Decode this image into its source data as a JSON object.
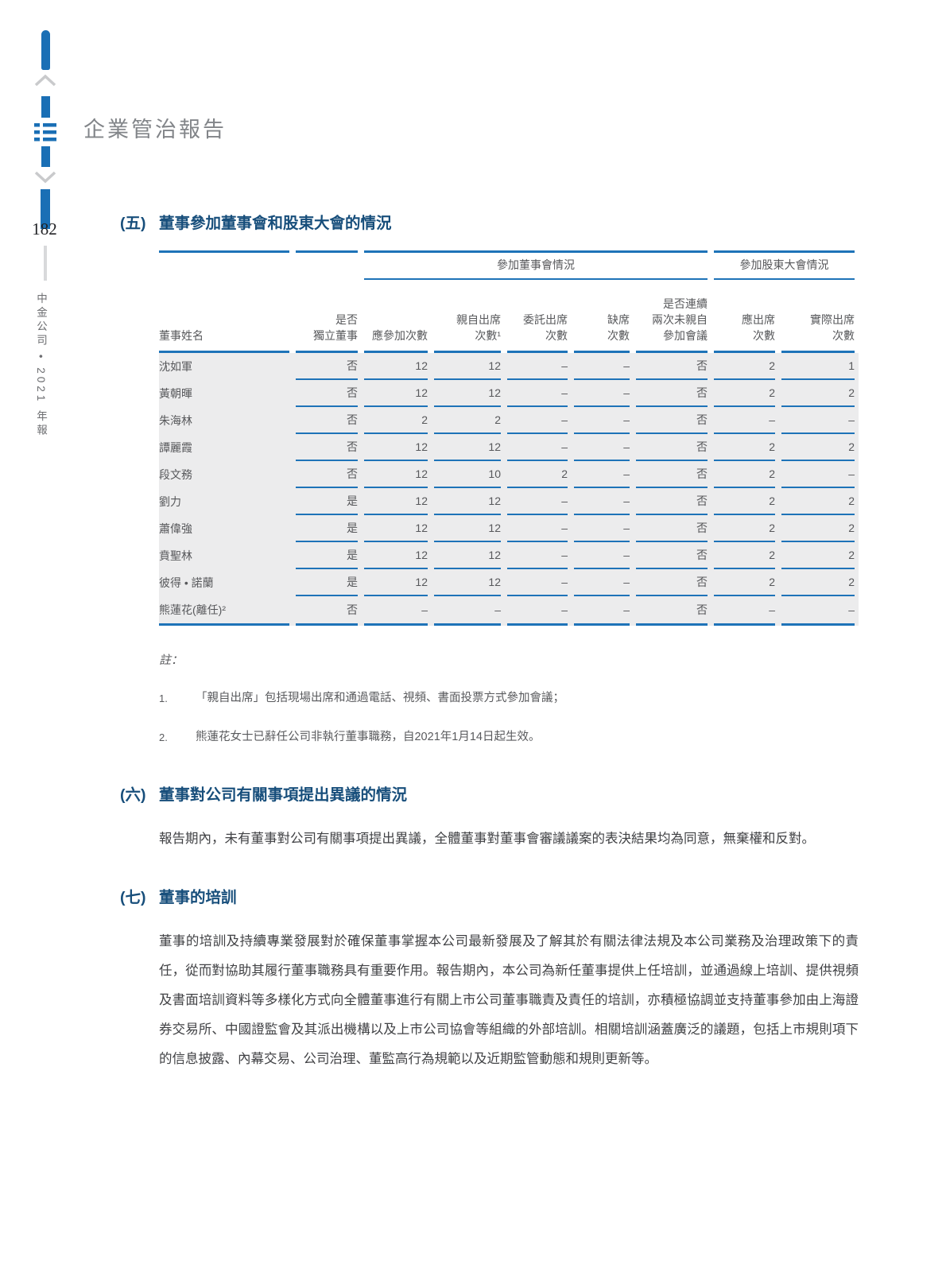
{
  "page": {
    "number": "182",
    "edition": "中金公司 • 2021 年報",
    "header_title": "企業管治報告"
  },
  "colors": {
    "accent_blue": "#1E73B8",
    "heading_navy": "#174E7B",
    "table_background": "#ECECED"
  },
  "section5": {
    "num": "(五)",
    "title": "董事參加董事會和股東大會的情況"
  },
  "table": {
    "group_headers": [
      "參加董事會情況",
      "參加股東大會情況"
    ],
    "columns": [
      "董事姓名",
      "是否\n獨立董事",
      "應參加次數",
      "親自出席\n次數¹",
      "委託出席\n次數",
      "缺席\n次數",
      "是否連續\n兩次未親自\n參加會議",
      "應出席\n次數",
      "實際出席\n次數"
    ],
    "rows": [
      [
        "沈如軍",
        "否",
        "12",
        "12",
        "–",
        "–",
        "否",
        "2",
        "1"
      ],
      [
        "黃朝暉",
        "否",
        "12",
        "12",
        "–",
        "–",
        "否",
        "2",
        "2"
      ],
      [
        "朱海林",
        "否",
        "2",
        "2",
        "–",
        "–",
        "否",
        "–",
        "–"
      ],
      [
        "譚麗霞",
        "否",
        "12",
        "12",
        "–",
        "–",
        "否",
        "2",
        "2"
      ],
      [
        "段文務",
        "否",
        "12",
        "10",
        "2",
        "–",
        "否",
        "2",
        "–"
      ],
      [
        "劉力",
        "是",
        "12",
        "12",
        "–",
        "–",
        "否",
        "2",
        "2"
      ],
      [
        "蕭偉強",
        "是",
        "12",
        "12",
        "–",
        "–",
        "否",
        "2",
        "2"
      ],
      [
        "賁聖林",
        "是",
        "12",
        "12",
        "–",
        "–",
        "否",
        "2",
        "2"
      ],
      [
        "彼得 • 諾蘭",
        "是",
        "12",
        "12",
        "–",
        "–",
        "否",
        "2",
        "2"
      ],
      [
        "熊蓮花(離任)²",
        "否",
        "–",
        "–",
        "–",
        "–",
        "否",
        "–",
        "–"
      ]
    ]
  },
  "notes": {
    "label": "註：",
    "items": [
      {
        "num": "1.",
        "text": "「親自出席」包括現場出席和通過電話、視頻、書面投票方式參加會議；"
      },
      {
        "num": "2.",
        "text": "熊蓮花女士已辭任公司非執行董事職務，自2021年1月14日起生效。"
      }
    ]
  },
  "section6": {
    "num": "(六)",
    "title": "董事對公司有關事項提出異議的情況",
    "body": "報告期內，未有董事對公司有關事項提出異議，全體董事對董事會審議議案的表決結果均為同意，無棄權和反對。"
  },
  "section7": {
    "num": "(七)",
    "title": "董事的培訓",
    "body": "董事的培訓及持續專業發展對於確保董事掌握本公司最新發展及了解其於有關法律法規及本公司業務及治理政策下的責任，從而對協助其履行董事職務具有重要作用。報告期內，本公司為新任董事提供上任培訓，並通過線上培訓、提供視頻及書面培訓資料等多樣化方式向全體董事進行有關上市公司董事職責及責任的培訓，亦積極協調並支持董事參加由上海證券交易所、中國證監會及其派出機構以及上市公司協會等組織的外部培訓。相關培訓涵蓋廣泛的議題，包括上市規則項下的信息披露、內幕交易、公司治理、董監高行為規範以及近期監管動態和規則更新等。"
  }
}
